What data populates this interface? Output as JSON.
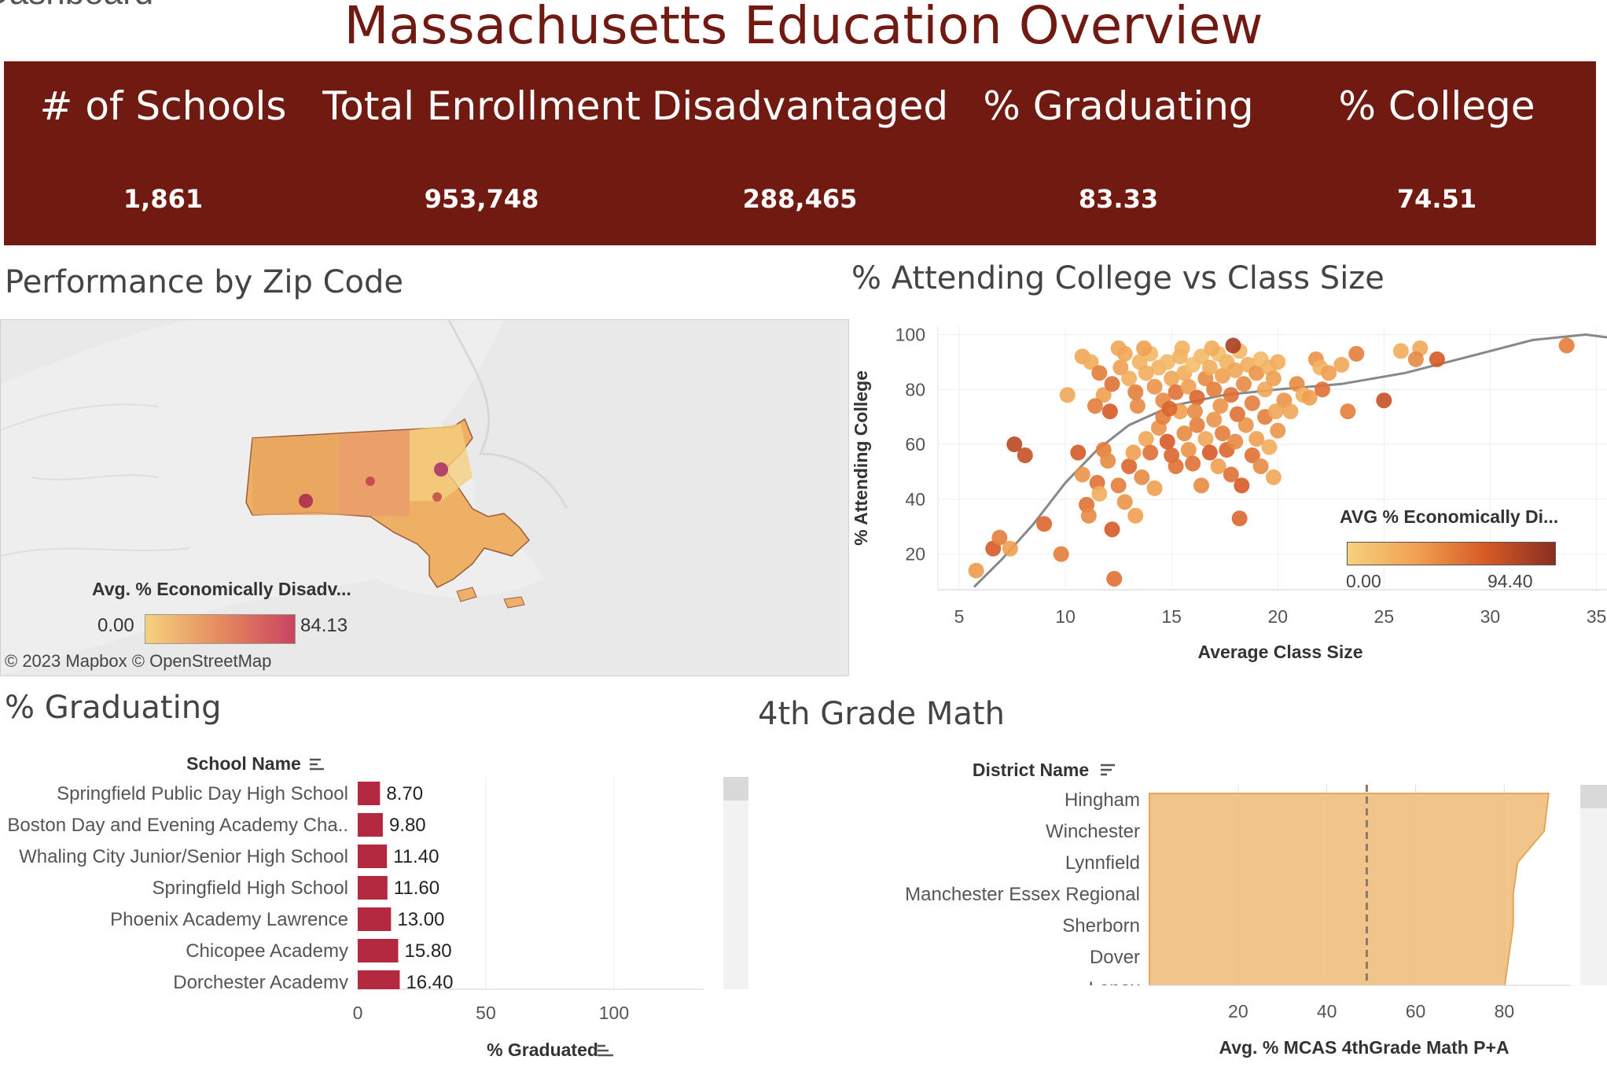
{
  "app_title_partial": "Dashboard",
  "title": "Massachusetts Education Overview",
  "colors": {
    "brand": "#701a12",
    "bar_red": "#b4293f",
    "bar_orange": "#f0c48a"
  },
  "kpis": [
    {
      "label": "# of Schools",
      "value": "1,861"
    },
    {
      "label": "Total Enrollment",
      "value": "953,748"
    },
    {
      "label": "Disadvantaged",
      "value": "288,465"
    },
    {
      "label": "% Graduating",
      "value": "83.33"
    },
    {
      "label": "% College",
      "value": "74.51"
    }
  ],
  "map": {
    "title": "Performance by Zip Code",
    "legend_title": "Avg. % Economically Disadv...",
    "legend_min": "0.00",
    "legend_max": "84.13",
    "attribution": "© 2023 Mapbox  © OpenStreetMap"
  },
  "chart_data": [
    {
      "type": "scatter",
      "title": "% Attending College vs Class Size",
      "xlabel": "Average Class Size",
      "ylabel": "% Attending College",
      "xlim": [
        4,
        35.5
      ],
      "ylim": [
        7,
        103
      ],
      "x_ticks": [
        "5",
        "10",
        "15",
        "20",
        "25",
        "30",
        "35"
      ],
      "y_ticks": [
        "20",
        "40",
        "60",
        "80",
        "100"
      ],
      "legend": {
        "title": "AVG % Economically Di...",
        "min": "0.00",
        "max": "94.40"
      },
      "trend_line": [
        [
          5.7,
          8
        ],
        [
          7,
          18
        ],
        [
          8.5,
          31
        ],
        [
          10,
          46
        ],
        [
          11.5,
          58
        ],
        [
          13,
          67
        ],
        [
          15,
          74
        ],
        [
          17.5,
          78
        ],
        [
          20,
          80
        ],
        [
          23,
          82
        ],
        [
          26,
          86
        ],
        [
          29,
          92
        ],
        [
          32,
          98
        ],
        [
          34.5,
          100
        ],
        [
          35.5,
          99
        ]
      ],
      "points": [
        {
          "x": 5.8,
          "y": 14,
          "d": 42
        },
        {
          "x": 6.6,
          "y": 22,
          "d": 70
        },
        {
          "x": 6.9,
          "y": 26,
          "d": 55
        },
        {
          "x": 7.4,
          "y": 22,
          "d": 40
        },
        {
          "x": 7.6,
          "y": 60,
          "d": 80
        },
        {
          "x": 8.1,
          "y": 56,
          "d": 75
        },
        {
          "x": 9.0,
          "y": 31,
          "d": 65
        },
        {
          "x": 9.8,
          "y": 20,
          "d": 55
        },
        {
          "x": 10.1,
          "y": 78,
          "d": 35
        },
        {
          "x": 10.6,
          "y": 57,
          "d": 70
        },
        {
          "x": 10.8,
          "y": 49,
          "d": 45
        },
        {
          "x": 11.0,
          "y": 38,
          "d": 60
        },
        {
          "x": 11.1,
          "y": 34,
          "d": 50
        },
        {
          "x": 11.5,
          "y": 46,
          "d": 60
        },
        {
          "x": 11.6,
          "y": 42,
          "d": 30
        },
        {
          "x": 11.8,
          "y": 58,
          "d": 55
        },
        {
          "x": 12.0,
          "y": 54,
          "d": 50
        },
        {
          "x": 12.2,
          "y": 29,
          "d": 70
        },
        {
          "x": 12.3,
          "y": 11,
          "d": 60
        },
        {
          "x": 12.5,
          "y": 45,
          "d": 55
        },
        {
          "x": 12.8,
          "y": 39,
          "d": 45
        },
        {
          "x": 13.0,
          "y": 52,
          "d": 65
        },
        {
          "x": 13.2,
          "y": 57,
          "d": 40
        },
        {
          "x": 13.3,
          "y": 34,
          "d": 40
        },
        {
          "x": 13.6,
          "y": 48,
          "d": 50
        },
        {
          "x": 13.8,
          "y": 62,
          "d": 35
        },
        {
          "x": 14.0,
          "y": 57,
          "d": 60
        },
        {
          "x": 14.2,
          "y": 44,
          "d": 40
        },
        {
          "x": 14.4,
          "y": 66,
          "d": 45
        },
        {
          "x": 14.6,
          "y": 70,
          "d": 55
        },
        {
          "x": 14.8,
          "y": 61,
          "d": 70
        },
        {
          "x": 15.0,
          "y": 56,
          "d": 65
        },
        {
          "x": 15.2,
          "y": 52,
          "d": 60
        },
        {
          "x": 15.4,
          "y": 72,
          "d": 40
        },
        {
          "x": 15.6,
          "y": 64,
          "d": 50
        },
        {
          "x": 15.8,
          "y": 58,
          "d": 45
        },
        {
          "x": 16.0,
          "y": 53,
          "d": 60
        },
        {
          "x": 16.2,
          "y": 67,
          "d": 55
        },
        {
          "x": 16.4,
          "y": 45,
          "d": 50
        },
        {
          "x": 16.6,
          "y": 62,
          "d": 35
        },
        {
          "x": 16.8,
          "y": 57,
          "d": 70
        },
        {
          "x": 17.0,
          "y": 69,
          "d": 45
        },
        {
          "x": 17.2,
          "y": 52,
          "d": 40
        },
        {
          "x": 17.4,
          "y": 64,
          "d": 55
        },
        {
          "x": 17.6,
          "y": 58,
          "d": 65
        },
        {
          "x": 17.8,
          "y": 49,
          "d": 60
        },
        {
          "x": 18.0,
          "y": 61,
          "d": 50
        },
        {
          "x": 18.2,
          "y": 33,
          "d": 65
        },
        {
          "x": 18.3,
          "y": 45,
          "d": 70
        },
        {
          "x": 18.5,
          "y": 67,
          "d": 45
        },
        {
          "x": 18.8,
          "y": 56,
          "d": 60
        },
        {
          "x": 19.0,
          "y": 62,
          "d": 40
        },
        {
          "x": 19.2,
          "y": 52,
          "d": 50
        },
        {
          "x": 19.4,
          "y": 70,
          "d": 55
        },
        {
          "x": 19.6,
          "y": 59,
          "d": 30
        },
        {
          "x": 19.8,
          "y": 48,
          "d": 35
        },
        {
          "x": 20.0,
          "y": 65,
          "d": 45
        },
        {
          "x": 20.3,
          "y": 76,
          "d": 45
        },
        {
          "x": 20.6,
          "y": 72,
          "d": 35
        },
        {
          "x": 20.9,
          "y": 82,
          "d": 50
        },
        {
          "x": 21.2,
          "y": 78,
          "d": 30
        },
        {
          "x": 21.5,
          "y": 77,
          "d": 40
        },
        {
          "x": 21.8,
          "y": 91,
          "d": 45
        },
        {
          "x": 22.0,
          "y": 88,
          "d": 25
        },
        {
          "x": 22.1,
          "y": 80,
          "d": 60
        },
        {
          "x": 22.4,
          "y": 86,
          "d": 40
        },
        {
          "x": 23.0,
          "y": 89,
          "d": 35
        },
        {
          "x": 23.3,
          "y": 72,
          "d": 55
        },
        {
          "x": 23.7,
          "y": 93,
          "d": 55
        },
        {
          "x": 25.0,
          "y": 76,
          "d": 75
        },
        {
          "x": 25.8,
          "y": 94,
          "d": 30
        },
        {
          "x": 26.7,
          "y": 95,
          "d": 35
        },
        {
          "x": 26.5,
          "y": 91,
          "d": 50
        },
        {
          "x": 27.5,
          "y": 91,
          "d": 70
        },
        {
          "x": 33.6,
          "y": 96,
          "d": 55
        },
        {
          "x": 10.8,
          "y": 92,
          "d": 35
        },
        {
          "x": 11.2,
          "y": 90,
          "d": 30
        },
        {
          "x": 11.6,
          "y": 86,
          "d": 55
        },
        {
          "x": 11.8,
          "y": 78,
          "d": 40
        },
        {
          "x": 12.2,
          "y": 82,
          "d": 60
        },
        {
          "x": 12.6,
          "y": 88,
          "d": 40
        },
        {
          "x": 12.8,
          "y": 93,
          "d": 35
        },
        {
          "x": 13.0,
          "y": 84,
          "d": 30
        },
        {
          "x": 13.3,
          "y": 79,
          "d": 55
        },
        {
          "x": 13.5,
          "y": 90,
          "d": 25
        },
        {
          "x": 13.8,
          "y": 86,
          "d": 30
        },
        {
          "x": 14.0,
          "y": 93,
          "d": 20
        },
        {
          "x": 14.2,
          "y": 81,
          "d": 45
        },
        {
          "x": 14.4,
          "y": 88,
          "d": 25
        },
        {
          "x": 14.6,
          "y": 76,
          "d": 50
        },
        {
          "x": 14.8,
          "y": 90,
          "d": 20
        },
        {
          "x": 15.0,
          "y": 84,
          "d": 35
        },
        {
          "x": 15.2,
          "y": 79,
          "d": 60
        },
        {
          "x": 15.4,
          "y": 92,
          "d": 25
        },
        {
          "x": 15.6,
          "y": 86,
          "d": 30
        },
        {
          "x": 15.8,
          "y": 81,
          "d": 40
        },
        {
          "x": 16.0,
          "y": 89,
          "d": 15
        },
        {
          "x": 16.2,
          "y": 77,
          "d": 65
        },
        {
          "x": 16.4,
          "y": 92,
          "d": 20
        },
        {
          "x": 16.6,
          "y": 84,
          "d": 50
        },
        {
          "x": 16.8,
          "y": 88,
          "d": 30
        },
        {
          "x": 17.0,
          "y": 80,
          "d": 55
        },
        {
          "x": 17.2,
          "y": 93,
          "d": 15
        },
        {
          "x": 17.4,
          "y": 85,
          "d": 40
        },
        {
          "x": 17.6,
          "y": 90,
          "d": 25
        },
        {
          "x": 17.8,
          "y": 78,
          "d": 60
        },
        {
          "x": 18.0,
          "y": 87,
          "d": 35
        },
        {
          "x": 18.2,
          "y": 94,
          "d": 20
        },
        {
          "x": 18.4,
          "y": 82,
          "d": 50
        },
        {
          "x": 18.6,
          "y": 89,
          "d": 30
        },
        {
          "x": 18.8,
          "y": 75,
          "d": 55
        },
        {
          "x": 19.0,
          "y": 86,
          "d": 45
        },
        {
          "x": 19.2,
          "y": 91,
          "d": 20
        },
        {
          "x": 19.4,
          "y": 80,
          "d": 35
        },
        {
          "x": 19.6,
          "y": 88,
          "d": 25
        },
        {
          "x": 19.8,
          "y": 84,
          "d": 40
        },
        {
          "x": 20.0,
          "y": 90,
          "d": 30
        },
        {
          "x": 17.9,
          "y": 96,
          "d": 85
        },
        {
          "x": 13.7,
          "y": 95,
          "d": 40
        },
        {
          "x": 15.5,
          "y": 95,
          "d": 25
        },
        {
          "x": 16.9,
          "y": 95,
          "d": 30
        },
        {
          "x": 12.5,
          "y": 95,
          "d": 35
        },
        {
          "x": 14.9,
          "y": 73,
          "d": 65
        },
        {
          "x": 16.1,
          "y": 72,
          "d": 50
        },
        {
          "x": 17.3,
          "y": 74,
          "d": 45
        },
        {
          "x": 18.1,
          "y": 71,
          "d": 60
        },
        {
          "x": 13.4,
          "y": 74,
          "d": 50
        },
        {
          "x": 12.1,
          "y": 72,
          "d": 70
        },
        {
          "x": 11.4,
          "y": 74,
          "d": 55
        },
        {
          "x": 19.9,
          "y": 72,
          "d": 35
        }
      ]
    },
    {
      "type": "bar",
      "title": "% Graduating",
      "category_axis_title": "School Name",
      "xlabel": "% Graduated",
      "xlim": [
        0,
        135
      ],
      "x_ticks": [
        "0",
        "50",
        "100"
      ],
      "categories": [
        "Springfield Public Day High School",
        "Boston Day and Evening Academy Cha..",
        "Whaling City Junior/Senior High School",
        "Springfield High School",
        "Phoenix Academy Lawrence",
        "Chicopee Academy",
        "Dorchester Academy"
      ],
      "values": [
        8.7,
        9.8,
        11.4,
        11.6,
        13.0,
        15.8,
        16.4
      ],
      "value_labels": [
        "8.70",
        "9.80",
        "11.40",
        "11.60",
        "13.00",
        "15.80",
        "16.40"
      ]
    },
    {
      "type": "area",
      "title": "4th Grade Math",
      "category_axis_title": "District Name",
      "xlabel": "Avg. % MCAS 4thGrade Math P+A",
      "xlim": [
        0,
        95
      ],
      "x_ticks": [
        "20",
        "40",
        "60",
        "80"
      ],
      "reference_line": 49,
      "categories": [
        "Hingham",
        "Winchester",
        "Lynnfield",
        "Manchester Essex Regional",
        "Sherborn",
        "Dover",
        "Lenox"
      ],
      "values": [
        90,
        89,
        83,
        82,
        82,
        81,
        80
      ]
    }
  ],
  "sections": {
    "scatter_title": "% Attending College vs Class Size",
    "grad_title": "% Graduating",
    "math_title": "4th Grade Math"
  }
}
